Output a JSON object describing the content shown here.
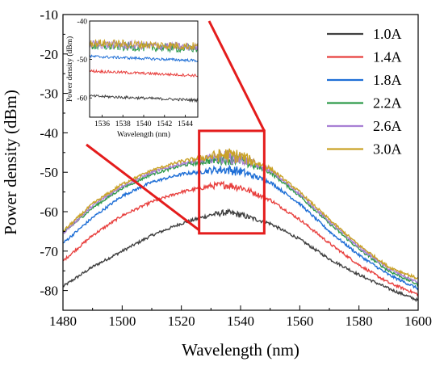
{
  "chart_data": [
    {
      "type": "line",
      "title": "",
      "xlabel": "Wavelength (nm)",
      "ylabel": "Power density (dBm)",
      "xlim": [
        1480,
        1600
      ],
      "ylim": [
        -85,
        -10
      ],
      "xticks": [
        1480,
        1500,
        1520,
        1540,
        1560,
        1580,
        1600
      ],
      "yticks": [
        -80,
        -70,
        -60,
        -50,
        -40,
        -30,
        -20,
        -10
      ],
      "x": [
        1480,
        1490,
        1500,
        1510,
        1520,
        1530,
        1535,
        1540,
        1550,
        1560,
        1570,
        1580,
        1590,
        1600
      ],
      "series": [
        {
          "name": "1.0A",
          "color": "#404040",
          "values": [
            -79,
            -74,
            -70,
            -66,
            -63,
            -60.8,
            -60.2,
            -60.8,
            -63,
            -67,
            -72,
            -76,
            -79.5,
            -82.5
          ]
        },
        {
          "name": "1.4A",
          "color": "#e8413f",
          "values": [
            -72.5,
            -66,
            -61,
            -57.5,
            -55,
            -53.5,
            -53.2,
            -53.8,
            -57,
            -62,
            -68,
            -73.5,
            -78,
            -81
          ]
        },
        {
          "name": "1.8A",
          "color": "#1f6fd6",
          "values": [
            -68,
            -61.5,
            -56,
            -52.5,
            -50.5,
            -49.5,
            -49.3,
            -49.8,
            -52.5,
            -58,
            -65,
            -71,
            -76,
            -79.5
          ]
        },
        {
          "name": "2.2A",
          "color": "#2e9b4a",
          "values": [
            -65.5,
            -59,
            -54,
            -50.5,
            -48.3,
            -47,
            -46.6,
            -47,
            -50,
            -56,
            -63,
            -69.5,
            -75,
            -78.5
          ]
        },
        {
          "name": "2.6A",
          "color": "#a87fd4",
          "values": [
            -65.5,
            -58.5,
            -53.5,
            -50,
            -47.8,
            -46.5,
            -46.1,
            -46.5,
            -49.5,
            -55.5,
            -62.5,
            -69,
            -74.5,
            -78
          ]
        },
        {
          "name": "3.0A",
          "color": "#c9a227",
          "values": [
            -65,
            -58,
            -53,
            -49.5,
            -47.2,
            -46,
            -45.6,
            -46,
            -49,
            -55,
            -62,
            -68.5,
            -74,
            -77
          ]
        }
      ],
      "legend": {
        "placement": "top-right"
      },
      "annotations": [
        "zoom-box",
        "zoom-connector-lines"
      ],
      "zoom_region": {
        "xlim": [
          1526,
          1548
        ],
        "ylim": [
          -65.5,
          -39.5
        ]
      },
      "grid": false,
      "frame_color": "#000000",
      "annotation_color": "#e41c1c"
    },
    {
      "type": "line",
      "title": "",
      "xlabel": "Wavelength (nm)",
      "ylabel": "Power density (dBm)",
      "xlim": [
        1534.8,
        1545.2
      ],
      "ylim": [
        -65,
        -40
      ],
      "xticks": [
        1536,
        1538,
        1540,
        1542,
        1544
      ],
      "yticks": [
        -40,
        -50,
        -60
      ],
      "x": [
        1534.8,
        1545.2
      ],
      "series": [
        {
          "name": "1.0A",
          "color": "#404040",
          "values": [
            -59.5,
            -60.6
          ]
        },
        {
          "name": "1.4A",
          "color": "#e8413f",
          "values": [
            -53,
            -54.2
          ]
        },
        {
          "name": "1.8A",
          "color": "#1f6fd6",
          "values": [
            -49.2,
            -50.3
          ]
        },
        {
          "name": "2.2A",
          "color": "#2e9b4a",
          "values": [
            -46.5,
            -47.2
          ]
        },
        {
          "name": "2.6A",
          "color": "#a87fd4",
          "values": [
            -46,
            -46.8
          ]
        },
        {
          "name": "3.0A",
          "color": "#c9a227",
          "values": [
            -45.7,
            -46.6
          ]
        }
      ],
      "grid": false
    }
  ]
}
